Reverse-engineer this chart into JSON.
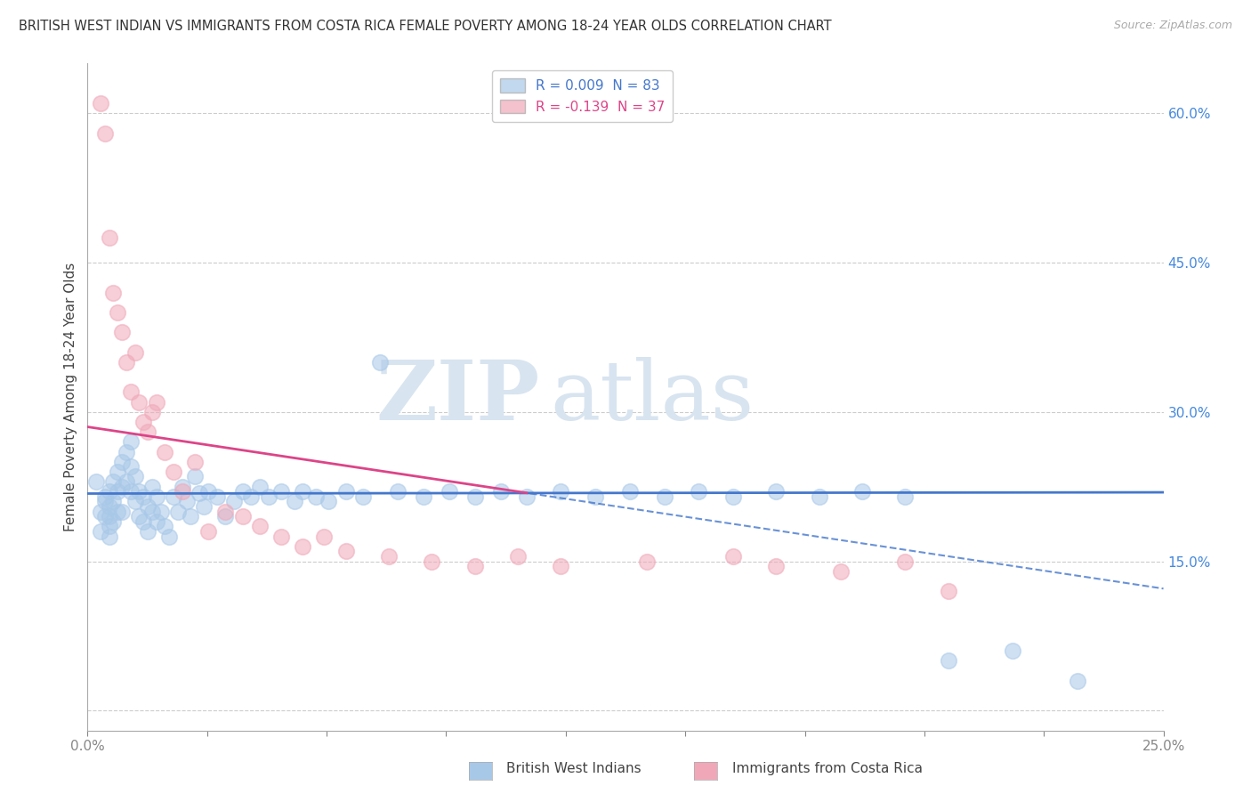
{
  "title": "BRITISH WEST INDIAN VS IMMIGRANTS FROM COSTA RICA FEMALE POVERTY AMONG 18-24 YEAR OLDS CORRELATION CHART",
  "source": "Source: ZipAtlas.com",
  "ylabel": "Female Poverty Among 18-24 Year Olds",
  "xmin": 0.0,
  "xmax": 0.25,
  "ymin": -0.02,
  "ymax": 0.65,
  "blue_R": 0.009,
  "blue_N": 83,
  "pink_R": -0.139,
  "pink_N": 37,
  "blue_color": "#a8c8e8",
  "pink_color": "#f0a8b8",
  "blue_line_color": "#4477cc",
  "pink_line_color": "#dd4488",
  "legend_blue_label": "British West Indians",
  "legend_pink_label": "Immigrants from Costa Rica",
  "watermark_zip": "ZIP",
  "watermark_atlas": "atlas",
  "blue_x": [
    0.002,
    0.003,
    0.003,
    0.004,
    0.004,
    0.004,
    0.005,
    0.005,
    0.005,
    0.005,
    0.005,
    0.006,
    0.006,
    0.006,
    0.007,
    0.007,
    0.007,
    0.008,
    0.008,
    0.008,
    0.009,
    0.009,
    0.01,
    0.01,
    0.01,
    0.011,
    0.011,
    0.012,
    0.012,
    0.013,
    0.013,
    0.014,
    0.014,
    0.015,
    0.015,
    0.016,
    0.016,
    0.017,
    0.018,
    0.019,
    0.02,
    0.021,
    0.022,
    0.023,
    0.024,
    0.025,
    0.026,
    0.027,
    0.028,
    0.03,
    0.032,
    0.034,
    0.036,
    0.038,
    0.04,
    0.042,
    0.045,
    0.048,
    0.05,
    0.053,
    0.056,
    0.06,
    0.064,
    0.068,
    0.072,
    0.078,
    0.084,
    0.09,
    0.096,
    0.102,
    0.11,
    0.118,
    0.126,
    0.134,
    0.142,
    0.15,
    0.16,
    0.17,
    0.18,
    0.19,
    0.2,
    0.215,
    0.23
  ],
  "blue_y": [
    0.23,
    0.2,
    0.18,
    0.21,
    0.195,
    0.215,
    0.22,
    0.205,
    0.195,
    0.185,
    0.175,
    0.23,
    0.21,
    0.19,
    0.24,
    0.22,
    0.2,
    0.25,
    0.225,
    0.2,
    0.26,
    0.23,
    0.27,
    0.245,
    0.22,
    0.235,
    0.21,
    0.22,
    0.195,
    0.215,
    0.19,
    0.205,
    0.18,
    0.225,
    0.2,
    0.215,
    0.19,
    0.2,
    0.185,
    0.175,
    0.215,
    0.2,
    0.225,
    0.21,
    0.195,
    0.235,
    0.218,
    0.205,
    0.22,
    0.215,
    0.195,
    0.21,
    0.22,
    0.215,
    0.225,
    0.215,
    0.22,
    0.21,
    0.22,
    0.215,
    0.21,
    0.22,
    0.215,
    0.35,
    0.22,
    0.215,
    0.22,
    0.215,
    0.22,
    0.215,
    0.22,
    0.215,
    0.22,
    0.215,
    0.22,
    0.215,
    0.22,
    0.215,
    0.22,
    0.215,
    0.05,
    0.06,
    0.03
  ],
  "pink_x": [
    0.003,
    0.004,
    0.005,
    0.006,
    0.007,
    0.008,
    0.009,
    0.01,
    0.011,
    0.012,
    0.013,
    0.014,
    0.015,
    0.016,
    0.018,
    0.02,
    0.022,
    0.025,
    0.028,
    0.032,
    0.036,
    0.04,
    0.045,
    0.05,
    0.055,
    0.06,
    0.07,
    0.08,
    0.09,
    0.1,
    0.11,
    0.13,
    0.15,
    0.16,
    0.175,
    0.19,
    0.2
  ],
  "pink_y": [
    0.61,
    0.58,
    0.475,
    0.42,
    0.4,
    0.38,
    0.35,
    0.32,
    0.36,
    0.31,
    0.29,
    0.28,
    0.3,
    0.31,
    0.26,
    0.24,
    0.22,
    0.25,
    0.18,
    0.2,
    0.195,
    0.185,
    0.175,
    0.165,
    0.175,
    0.16,
    0.155,
    0.15,
    0.145,
    0.155,
    0.145,
    0.15,
    0.155,
    0.145,
    0.14,
    0.15,
    0.12
  ],
  "blue_intercept": 0.218,
  "blue_slope": 0.005,
  "pink_intercept": 0.285,
  "pink_slope": -0.65
}
